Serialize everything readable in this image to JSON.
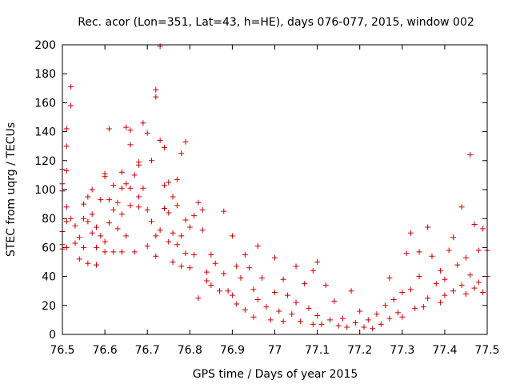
{
  "chart_data": {
    "type": "scatter",
    "title": "Rec. acor (Lon=351, Lat=43, h=HE), days 076-077, 2015, window 002",
    "xlabel": "GPS time / Days of year 2015",
    "ylabel": "STEC from uqrg / TECUs",
    "xlim": [
      76.5,
      77.5
    ],
    "ylim": [
      0,
      200
    ],
    "xticks": [
      "76.5",
      "76.6",
      "76.7",
      "76.8",
      "76.9",
      "77",
      "77.1",
      "77.2",
      "77.3",
      "77.4",
      "77.5"
    ],
    "yticks": [
      "0",
      "20",
      "40",
      "60",
      "80",
      "100",
      "120",
      "140",
      "160",
      "180",
      "200"
    ],
    "grid": false,
    "legend": "none",
    "marker": "plus",
    "color": "#cc0000",
    "series": [
      {
        "points": [
          [
            76.5,
            104
          ],
          [
            76.5,
            114
          ],
          [
            76.5,
            99
          ],
          [
            76.5,
            71
          ],
          [
            76.5,
            62
          ],
          [
            76.5,
            59
          ],
          [
            76.51,
            142
          ],
          [
            76.51,
            130
          ],
          [
            76.51,
            113
          ],
          [
            76.51,
            88
          ],
          [
            76.51,
            78
          ],
          [
            76.51,
            60
          ],
          [
            76.52,
            171
          ],
          [
            76.52,
            158
          ],
          [
            76.52,
            80
          ],
          [
            76.53,
            75
          ],
          [
            76.53,
            63
          ],
          [
            76.54,
            67
          ],
          [
            76.54,
            52
          ],
          [
            76.55,
            90
          ],
          [
            76.55,
            80
          ],
          [
            76.55,
            60
          ],
          [
            76.56,
            95
          ],
          [
            76.56,
            78
          ],
          [
            76.56,
            49
          ],
          [
            76.57,
            100
          ],
          [
            76.57,
            83
          ],
          [
            76.57,
            70
          ],
          [
            76.58,
            74
          ],
          [
            76.58,
            60
          ],
          [
            76.58,
            48
          ],
          [
            76.59,
            93
          ],
          [
            76.59,
            68
          ],
          [
            76.6,
            111
          ],
          [
            76.6,
            109
          ],
          [
            76.6,
            64
          ],
          [
            76.6,
            57
          ],
          [
            76.61,
            142
          ],
          [
            76.61,
            93
          ],
          [
            76.61,
            77
          ],
          [
            76.62,
            103
          ],
          [
            76.62,
            86
          ],
          [
            76.62,
            57
          ],
          [
            76.63,
            91
          ],
          [
            76.63,
            73
          ],
          [
            76.64,
            112
          ],
          [
            76.64,
            101
          ],
          [
            76.64,
            83
          ],
          [
            76.64,
            57
          ],
          [
            76.65,
            143
          ],
          [
            76.65,
            104
          ],
          [
            76.65,
            68
          ],
          [
            76.66,
            141
          ],
          [
            76.66,
            131
          ],
          [
            76.66,
            101
          ],
          [
            76.66,
            89
          ],
          [
            76.67,
            110
          ],
          [
            76.67,
            57
          ],
          [
            76.68,
            119
          ],
          [
            76.68,
            117
          ],
          [
            76.68,
            95
          ],
          [
            76.68,
            88
          ],
          [
            76.69,
            146
          ],
          [
            76.69,
            101
          ],
          [
            76.7,
            139
          ],
          [
            76.7,
            86
          ],
          [
            76.7,
            61
          ],
          [
            76.71,
            120
          ],
          [
            76.71,
            78
          ],
          [
            76.72,
            169
          ],
          [
            76.72,
            164
          ],
          [
            76.72,
            68
          ],
          [
            76.72,
            54
          ],
          [
            76.73,
            199
          ],
          [
            76.73,
            134
          ],
          [
            76.73,
            72
          ],
          [
            76.74,
            129
          ],
          [
            76.74,
            103
          ],
          [
            76.74,
            87
          ],
          [
            76.75,
            105
          ],
          [
            76.75,
            84
          ],
          [
            76.75,
            64
          ],
          [
            76.76,
            95
          ],
          [
            76.76,
            70
          ],
          [
            76.76,
            50
          ],
          [
            76.77,
            107
          ],
          [
            76.77,
            89
          ],
          [
            76.77,
            62
          ],
          [
            76.78,
            125
          ],
          [
            76.78,
            68
          ],
          [
            76.78,
            47
          ],
          [
            76.79,
            133
          ],
          [
            76.79,
            79
          ],
          [
            76.79,
            56
          ],
          [
            76.8,
            74
          ],
          [
            76.8,
            46
          ],
          [
            76.81,
            82
          ],
          [
            76.81,
            55
          ],
          [
            76.82,
            91
          ],
          [
            76.82,
            25
          ],
          [
            76.83,
            86
          ],
          [
            76.83,
            72
          ],
          [
            76.84,
            43
          ],
          [
            76.84,
            37
          ],
          [
            76.85,
            55
          ],
          [
            76.85,
            34
          ],
          [
            76.86,
            49
          ],
          [
            76.87,
            30
          ],
          [
            76.88,
            85
          ],
          [
            76.88,
            42
          ],
          [
            76.89,
            30
          ],
          [
            76.9,
            68
          ],
          [
            76.9,
            27
          ],
          [
            76.91,
            47
          ],
          [
            76.91,
            21
          ],
          [
            76.92,
            39
          ],
          [
            76.93,
            55
          ],
          [
            76.93,
            17
          ],
          [
            76.94,
            46
          ],
          [
            76.95,
            31
          ],
          [
            76.95,
            12
          ],
          [
            76.96,
            61
          ],
          [
            76.96,
            24
          ],
          [
            76.97,
            39
          ],
          [
            76.98,
            19
          ],
          [
            76.99,
            10
          ],
          [
            77.0,
            53
          ],
          [
            77.0,
            29
          ],
          [
            77.01,
            16
          ],
          [
            77.02,
            38
          ],
          [
            77.02,
            9
          ],
          [
            77.03,
            27
          ],
          [
            77.04,
            14
          ],
          [
            77.05,
            47
          ],
          [
            77.05,
            22
          ],
          [
            77.06,
            9
          ],
          [
            77.07,
            35
          ],
          [
            77.08,
            18
          ],
          [
            77.09,
            44
          ],
          [
            77.09,
            7
          ],
          [
            77.1,
            50
          ],
          [
            77.1,
            13
          ],
          [
            77.11,
            7
          ],
          [
            77.12,
            34
          ],
          [
            77.13,
            10
          ],
          [
            77.14,
            23
          ],
          [
            77.15,
            6
          ],
          [
            77.16,
            11
          ],
          [
            77.17,
            5
          ],
          [
            77.18,
            30
          ],
          [
            77.19,
            8
          ],
          [
            77.2,
            16
          ],
          [
            77.21,
            5
          ],
          [
            77.22,
            10
          ],
          [
            77.23,
            4
          ],
          [
            77.24,
            14
          ],
          [
            77.25,
            7
          ],
          [
            77.26,
            20
          ],
          [
            77.27,
            39
          ],
          [
            77.27,
            11
          ],
          [
            77.28,
            24
          ],
          [
            77.29,
            15
          ],
          [
            77.3,
            29
          ],
          [
            77.3,
            12
          ],
          [
            77.31,
            56
          ],
          [
            77.32,
            70
          ],
          [
            77.32,
            31
          ],
          [
            77.33,
            18
          ],
          [
            77.34,
            57
          ],
          [
            77.34,
            40
          ],
          [
            77.35,
            19
          ],
          [
            77.36,
            74
          ],
          [
            77.36,
            25
          ],
          [
            77.37,
            54
          ],
          [
            77.38,
            35
          ],
          [
            77.39,
            44
          ],
          [
            77.39,
            22
          ],
          [
            77.4,
            38
          ],
          [
            77.4,
            27
          ],
          [
            77.41,
            58
          ],
          [
            77.42,
            67
          ],
          [
            77.42,
            30
          ],
          [
            77.43,
            48
          ],
          [
            77.44,
            88
          ],
          [
            77.44,
            34
          ],
          [
            77.45,
            53
          ],
          [
            77.45,
            28
          ],
          [
            77.46,
            124
          ],
          [
            77.46,
            41
          ],
          [
            77.47,
            76
          ],
          [
            77.47,
            32
          ],
          [
            77.48,
            58
          ],
          [
            77.48,
            36
          ],
          [
            77.49,
            73
          ],
          [
            77.49,
            29
          ],
          [
            77.5,
            58
          ],
          [
            77.5,
            40
          ]
        ]
      }
    ]
  }
}
